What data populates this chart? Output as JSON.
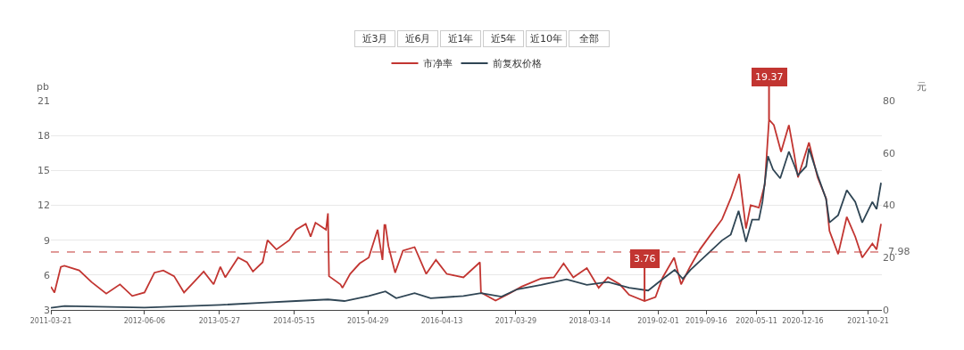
{
  "chart_data": {
    "type": "line",
    "ylabel": "pb",
    "y2label": "元",
    "annotations": [
      "近3月",
      "近6月",
      "近1年",
      "近5年",
      "近10年",
      "全部",
      {
        "text": "19.37",
        "x": "2020-07-09",
        "y": 19.37
      },
      {
        "text": "3.76",
        "x": "2018-11-28",
        "y": 3.76
      }
    ],
    "series": [
      {
        "name": "市净率",
        "color": "#c23531",
        "x": [
          "2011-03-21",
          "2011-04-07",
          "2011-05-07",
          "2011-05-24",
          "2011-08-02",
          "2011-09-29",
          "2011-12-08",
          "2012-02-11",
          "2012-04-09",
          "2012-06-06",
          "2012-07-23",
          "2012-09-03",
          "2012-10-24",
          "2012-12-10",
          "2013-01-26",
          "2013-03-13",
          "2013-04-29",
          "2013-05-31",
          "2013-06-23",
          "2013-08-23",
          "2013-10-04",
          "2013-11-01",
          "2013-12-17",
          "2014-01-09",
          "2014-02-20",
          "2014-04-22",
          "2014-05-24",
          "2014-07-09",
          "2014-08-01",
          "2014-08-24",
          "2014-10-13",
          "2014-10-22",
          "2014-10-27",
          "2014-12-20",
          "2014-12-30",
          "2015-02-04",
          "2015-03-21",
          "2015-05-03",
          "2015-06-14",
          "2015-07-07",
          "2015-07-16",
          "2015-07-21",
          "2015-08-04",
          "2015-09-05",
          "2015-10-12",
          "2015-12-06",
          "2016-01-30",
          "2016-03-16",
          "2016-05-06",
          "2016-07-24",
          "2016-10-10",
          "2016-10-15",
          "2016-12-23",
          "2017-02-25",
          "2017-04-25",
          "2017-07-27",
          "2017-09-25",
          "2017-11-10",
          "2017-12-26",
          "2018-02-28",
          "2018-04-25",
          "2018-06-08",
          "2018-08-03",
          "2018-09-16",
          "2018-11-28",
          "2019-01-19",
          "2019-02-22",
          "2019-04-17",
          "2019-05-20",
          "2019-07-01",
          "2019-08-17",
          "2019-10-08",
          "2019-11-30",
          "2020-01-10",
          "2020-02-19",
          "2020-03-22",
          "2020-04-13",
          "2020-05-22",
          "2020-06-19",
          "2020-07-09",
          "2020-08-01",
          "2020-09-04",
          "2020-10-11",
          "2020-11-05",
          "2020-11-23",
          "2021-01-14",
          "2021-02-24",
          "2021-04-05",
          "2021-04-21",
          "2021-06-01",
          "2021-07-12",
          "2021-08-21",
          "2021-09-23",
          "2021-11-10",
          "2021-11-30",
          "2021-12-21"
        ],
        "values": [
          5.0,
          4.5,
          6.7,
          6.8,
          6.4,
          5.4,
          4.4,
          5.2,
          4.2,
          4.5,
          6.2,
          6.4,
          5.9,
          4.5,
          5.4,
          6.3,
          5.2,
          6.7,
          5.8,
          7.5,
          7.1,
          6.3,
          7.1,
          9.0,
          8.2,
          9.0,
          9.9,
          10.4,
          9.3,
          10.5,
          9.9,
          11.3,
          5.9,
          5.2,
          4.9,
          6.1,
          7.0,
          7.5,
          9.9,
          7.3,
          10.3,
          10.3,
          8.5,
          6.2,
          8.1,
          8.4,
          6.1,
          7.3,
          6.1,
          5.8,
          7.1,
          4.5,
          3.8,
          4.4,
          5.0,
          5.7,
          5.8,
          7.0,
          5.8,
          6.6,
          4.9,
          5.8,
          5.2,
          4.3,
          3.76,
          4.1,
          5.8,
          7.5,
          5.2,
          6.7,
          8.2,
          9.5,
          10.8,
          12.6,
          14.7,
          10.0,
          12.0,
          11.8,
          13.8,
          19.37,
          18.9,
          16.6,
          18.9,
          16.4,
          14.4,
          17.4,
          14.4,
          12.6,
          9.8,
          7.8,
          11.0,
          9.3,
          7.5,
          8.7,
          8.2,
          10.4
        ]
      },
      {
        "name": "前复权价格",
        "color": "#2f4554",
        "axis": "y2",
        "x": [
          "2011-03-21",
          "2011-05-25",
          "2012-06-06",
          "2013-05-31",
          "2013-12-17",
          "2014-05-24",
          "2014-10-22",
          "2015-01-08",
          "2015-05-03",
          "2015-07-21",
          "2015-09-10",
          "2015-12-06",
          "2016-02-20",
          "2016-07-24",
          "2016-10-15",
          "2017-01-20",
          "2017-04-05",
          "2017-07-27",
          "2017-11-24",
          "2018-02-28",
          "2018-06-08",
          "2018-09-16",
          "2018-12-15",
          "2019-02-14",
          "2019-04-20",
          "2019-05-28",
          "2019-07-03",
          "2019-08-17",
          "2019-10-08",
          "2019-11-30",
          "2020-01-10",
          "2020-02-16",
          "2020-03-22",
          "2020-04-20",
          "2020-05-22",
          "2020-06-08",
          "2020-07-04",
          "2020-07-28",
          "2020-08-31",
          "2020-10-11",
          "2020-11-05",
          "2020-11-23",
          "2021-01-01",
          "2021-01-14",
          "2021-02-24",
          "2021-04-05",
          "2021-04-21",
          "2021-06-01",
          "2021-07-12",
          "2021-08-21",
          "2021-09-23",
          "2021-11-10",
          "2021-11-30",
          "2021-12-21"
        ],
        "values": [
          0.8,
          1.5,
          0.9,
          1.9,
          2.8,
          3.4,
          4.0,
          3.4,
          5.3,
          7.1,
          4.5,
          6.4,
          4.5,
          5.3,
          6.4,
          5.1,
          7.9,
          9.6,
          11.7,
          9.6,
          10.7,
          8.5,
          7.4,
          11.3,
          15.3,
          11.9,
          15.3,
          18.7,
          22.6,
          26.6,
          28.8,
          37.9,
          26.0,
          34.5,
          34.5,
          41.3,
          58.8,
          53.7,
          50.3,
          60.5,
          55.4,
          51.5,
          54.9,
          61.7,
          51.5,
          42.4,
          33.4,
          36.2,
          45.8,
          41.3,
          33.4,
          41.3,
          38.5,
          48.6
        ]
      }
    ],
    "xlim": [
      "2011-03-21",
      "2021-12-25"
    ],
    "xticks": [
      "2011-03-21",
      "2012-06-06",
      "2013-05-27",
      "2014-05-15",
      "2015-04-29",
      "2016-04-13",
      "2017-03-29",
      "2018-03-14",
      "2019-02-01",
      "2019-09-16",
      "2020-05-11",
      "2020-12-16",
      "2021-10-21"
    ],
    "ylim": [
      3,
      21
    ],
    "yticks": [
      3,
      6,
      9,
      12,
      15,
      18,
      21
    ],
    "y2lim": [
      0,
      80
    ],
    "y2ticks": [
      0,
      20,
      40,
      60,
      80
    ],
    "ref_lines": [
      {
        "axis": "y",
        "value": 7.98,
        "label": "7.98",
        "color": "#c23531",
        "line_style": "dashed"
      }
    ],
    "grid": "y",
    "legend": "top",
    "line_style": "solid"
  }
}
